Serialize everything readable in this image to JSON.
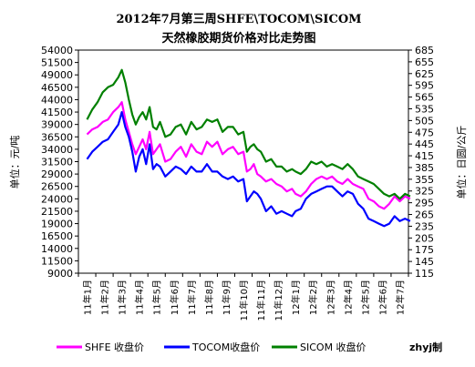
{
  "chart_data": {
    "type": "line",
    "title": "2012年7月第三周SHFE\\TOCOM\\SICOM",
    "subtitle": "天然橡胶期货价格对比走势图",
    "ylabel_left": "单位：元/吨",
    "ylabel_right": "单位：日圆/公斤",
    "ylim_left": [
      9000,
      54000
    ],
    "ylim_right": [
      115,
      685
    ],
    "yticks_left": [
      9000,
      11500,
      14000,
      16500,
      19000,
      21500,
      24000,
      26500,
      29000,
      31500,
      34000,
      36500,
      39000,
      41500,
      44000,
      46500,
      49000,
      51500,
      54000
    ],
    "yticks_right": [
      115,
      145,
      175,
      205,
      235,
      265,
      295,
      325,
      355,
      385,
      415,
      445,
      475,
      505,
      535,
      565,
      595,
      625,
      655,
      685
    ],
    "x_categories": [
      "11年1月",
      "11年2月",
      "11年3月",
      "11年4月",
      "11年5月",
      "11年6月",
      "11年7月",
      "11年8月",
      "11年9月",
      "11年10月",
      "11年11月",
      "11年12月",
      "12年1月",
      "12年2月",
      "12年3月",
      "12年4月",
      "12年5月",
      "12年6月",
      "12年7月"
    ],
    "legend_position": "bottom",
    "grid": false,
    "series": [
      {
        "name": "SHFE 收盘价",
        "axis": "left",
        "color": "#ff00ff",
        "x": [
          0,
          0.3,
          0.6,
          0.9,
          1.2,
          1.5,
          1.8,
          2.0,
          2.2,
          2.4,
          2.6,
          2.8,
          3.0,
          3.2,
          3.4,
          3.6,
          3.8,
          4.0,
          4.2,
          4.5,
          4.8,
          5.1,
          5.4,
          5.7,
          6.0,
          6.3,
          6.6,
          6.9,
          7.2,
          7.5,
          7.8,
          8.1,
          8.4,
          8.7,
          9.0,
          9.2,
          9.4,
          9.6,
          9.8,
          10.0,
          10.3,
          10.6,
          10.9,
          11.2,
          11.5,
          11.8,
          12.0,
          12.3,
          12.6,
          12.9,
          13.2,
          13.5,
          13.8,
          14.1,
          14.4,
          14.7,
          15.0,
          15.3,
          15.6,
          15.9,
          16.2,
          16.5,
          16.8,
          17.1,
          17.4,
          17.7,
          18.0,
          18.3,
          18.6
        ],
        "y": [
          37000,
          38000,
          38500,
          39500,
          40000,
          41500,
          42500,
          43500,
          40000,
          37500,
          35000,
          33000,
          34500,
          36000,
          34000,
          37500,
          33000,
          34000,
          35000,
          31500,
          32000,
          33500,
          34500,
          32500,
          35000,
          33500,
          33000,
          35500,
          34500,
          35500,
          33000,
          34000,
          34500,
          33000,
          33500,
          29500,
          30000,
          31000,
          29000,
          28500,
          27500,
          28000,
          27000,
          26500,
          25500,
          26000,
          25000,
          24500,
          25500,
          27000,
          28000,
          28500,
          28000,
          28500,
          27500,
          27000,
          28000,
          27000,
          26500,
          26000,
          24000,
          23500,
          22500,
          22000,
          23000,
          24500,
          23500,
          24500,
          24000
        ]
      },
      {
        "name": "TOCOM收盘价",
        "axis": "left",
        "color": "#0000ff",
        "x": [
          0,
          0.3,
          0.6,
          0.9,
          1.2,
          1.5,
          1.8,
          2.0,
          2.2,
          2.4,
          2.6,
          2.8,
          3.0,
          3.2,
          3.4,
          3.6,
          3.8,
          4.0,
          4.2,
          4.5,
          4.8,
          5.1,
          5.4,
          5.7,
          6.0,
          6.3,
          6.6,
          6.9,
          7.2,
          7.5,
          7.8,
          8.1,
          8.4,
          8.7,
          9.0,
          9.2,
          9.4,
          9.6,
          9.8,
          10.0,
          10.3,
          10.6,
          10.9,
          11.2,
          11.5,
          11.8,
          12.0,
          12.3,
          12.6,
          12.9,
          13.2,
          13.5,
          13.8,
          14.1,
          14.4,
          14.7,
          15.0,
          15.3,
          15.6,
          15.9,
          16.2,
          16.5,
          16.8,
          17.1,
          17.4,
          17.7,
          18.0,
          18.3,
          18.6
        ],
        "y": [
          32000,
          33500,
          34500,
          35500,
          36000,
          37500,
          39000,
          41500,
          38500,
          36500,
          33500,
          29500,
          32500,
          34000,
          31000,
          35000,
          30000,
          31000,
          30500,
          28500,
          29500,
          30500,
          30000,
          29000,
          30500,
          29500,
          29500,
          31000,
          29500,
          29500,
          28500,
          28000,
          28500,
          27500,
          28000,
          23500,
          24500,
          25500,
          25000,
          24000,
          21500,
          22500,
          21000,
          21500,
          21000,
          20500,
          21500,
          22000,
          24000,
          25000,
          25500,
          26000,
          26500,
          26500,
          25500,
          24500,
          25500,
          25000,
          23000,
          22000,
          20000,
          19500,
          19000,
          18500,
          19000,
          20500,
          19500,
          20000,
          19500
        ]
      },
      {
        "name": "SICOM 收盘价",
        "axis": "left",
        "color": "#008000",
        "x": [
          0,
          0.3,
          0.6,
          0.9,
          1.2,
          1.5,
          1.8,
          2.0,
          2.2,
          2.4,
          2.6,
          2.8,
          3.0,
          3.2,
          3.4,
          3.6,
          3.8,
          4.0,
          4.2,
          4.5,
          4.8,
          5.1,
          5.4,
          5.7,
          6.0,
          6.3,
          6.6,
          6.9,
          7.2,
          7.5,
          7.8,
          8.1,
          8.4,
          8.7,
          9.0,
          9.2,
          9.4,
          9.6,
          9.8,
          10.0,
          10.3,
          10.6,
          10.9,
          11.2,
          11.5,
          11.8,
          12.0,
          12.3,
          12.6,
          12.9,
          13.2,
          13.5,
          13.8,
          14.1,
          14.4,
          14.7,
          15.0,
          15.3,
          15.6,
          15.9,
          16.2,
          16.5,
          16.8,
          17.1,
          17.4,
          17.7,
          18.0,
          18.3,
          18.6
        ],
        "y": [
          40000,
          42000,
          43500,
          45500,
          46500,
          47000,
          48500,
          50000,
          47500,
          44000,
          41000,
          39000,
          40500,
          41500,
          40000,
          42500,
          38500,
          38000,
          39500,
          36500,
          37000,
          38500,
          39000,
          37000,
          39500,
          38000,
          38500,
          40000,
          39500,
          40000,
          37500,
          38500,
          38500,
          37000,
          37500,
          33500,
          34500,
          35000,
          34000,
          33500,
          31500,
          32000,
          30500,
          30500,
          29500,
          30000,
          29500,
          29000,
          30000,
          31500,
          31000,
          31500,
          30500,
          31000,
          30500,
          30000,
          31000,
          30000,
          28500,
          28000,
          27500,
          27000,
          26000,
          25000,
          24500,
          25000,
          24000,
          25000,
          24500
        ]
      }
    ]
  },
  "legend": [
    {
      "label": "SHFE 收盘价",
      "color": "#ff00ff"
    },
    {
      "label": "TOCOM收盘价",
      "color": "#0000ff"
    },
    {
      "label": "SICOM 收盘价",
      "color": "#008000"
    }
  ],
  "credit": "zhyj制"
}
